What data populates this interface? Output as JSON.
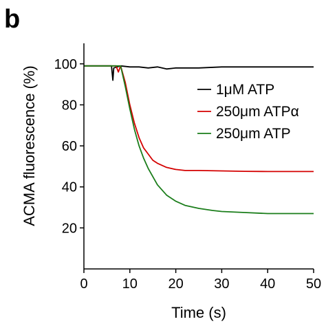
{
  "panel_label": "b",
  "chart_data": {
    "type": "line",
    "title": "",
    "xlabel": "Time (s)",
    "ylabel": "ACMA fluorescence (%)",
    "xlim": [
      0,
      50
    ],
    "ylim": [
      0,
      110
    ],
    "xticks": [
      0,
      10,
      20,
      30,
      40,
      50
    ],
    "yticks": [
      20,
      40,
      60,
      80,
      100
    ],
    "grid": false,
    "legend_position": "right",
    "series": [
      {
        "name": "1μM ATP",
        "color": "#000000",
        "x": [
          0,
          2,
          4,
          6,
          6.3,
          6.5,
          8,
          10,
          12,
          14,
          16,
          18,
          20,
          25,
          30,
          35,
          40,
          45,
          50
        ],
        "y": [
          99,
          99,
          99,
          99,
          92,
          98,
          99,
          98.5,
          98.5,
          98,
          98.5,
          97.5,
          98,
          98,
          98.5,
          98.5,
          98.5,
          98.5,
          98.5
        ]
      },
      {
        "name": "250μm ATPα",
        "color": "#d40000",
        "x": [
          0,
          4,
          7,
          7.5,
          8,
          9,
          10,
          11,
          12,
          13,
          14,
          15,
          16,
          18,
          20,
          22,
          25,
          30,
          35,
          40,
          45,
          50
        ],
        "y": [
          99,
          99,
          99,
          96,
          99,
          91,
          80,
          71,
          64,
          59,
          56,
          53,
          51.5,
          49.5,
          48.5,
          48,
          48,
          47.8,
          47.6,
          47.5,
          47.5,
          47.5
        ]
      },
      {
        "name": "250μm ATP",
        "color": "#1a7d1a",
        "x": [
          0,
          4,
          7,
          8,
          9,
          10,
          11,
          12,
          13,
          14,
          15,
          16,
          18,
          20,
          22,
          25,
          28,
          30,
          35,
          40,
          45,
          50
        ],
        "y": [
          99,
          99,
          99,
          99,
          89,
          78,
          68,
          60,
          54,
          49,
          45,
          41,
          36,
          33,
          31,
          29.5,
          28.5,
          28,
          27.5,
          27,
          27,
          27
        ]
      }
    ]
  }
}
